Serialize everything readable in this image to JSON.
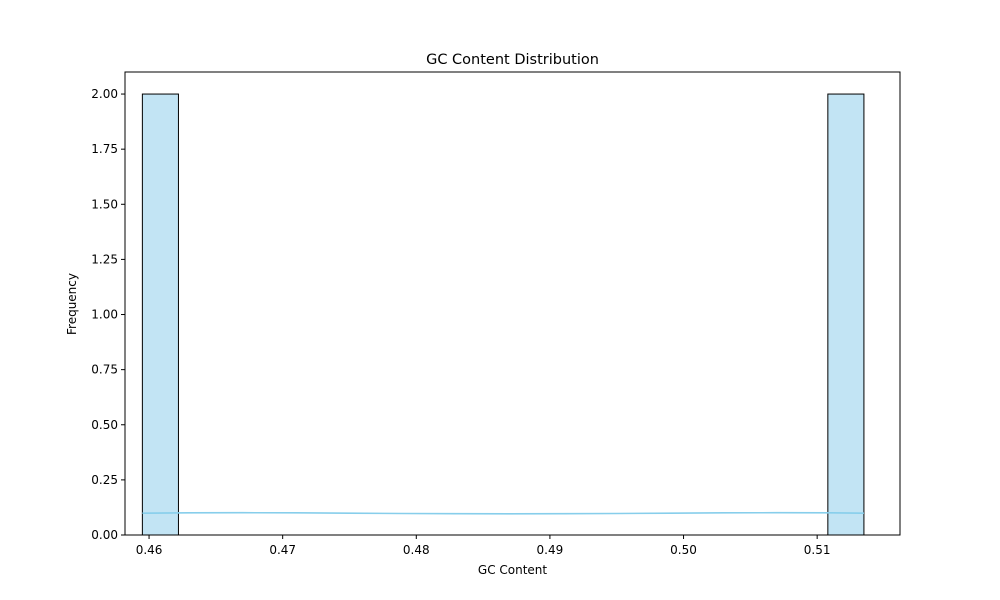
{
  "chart_data": {
    "type": "bar",
    "title": "GC Content Distribution",
    "xlabel": "GC Content",
    "ylabel": "Frequency",
    "xlim": [
      0.4582,
      0.5162
    ],
    "ylim": [
      0.0,
      2.1
    ],
    "xticks": [
      "0.46",
      "0.47",
      "0.48",
      "0.49",
      "0.50",
      "0.51"
    ],
    "xtick_values": [
      0.46,
      0.47,
      0.48,
      0.49,
      0.5,
      0.51
    ],
    "yticks": [
      "0.00",
      "0.25",
      "0.50",
      "0.75",
      "1.00",
      "1.25",
      "1.50",
      "1.75",
      "2.00"
    ],
    "ytick_values": [
      0.0,
      0.25,
      0.5,
      0.75,
      1.0,
      1.25,
      1.5,
      1.75,
      2.0
    ],
    "bins": [
      {
        "x0": 0.4595,
        "x1": 0.4622,
        "count": 2
      },
      {
        "x0": 0.5108,
        "x1": 0.5135,
        "count": 2
      }
    ],
    "kde": {
      "x": [
        0.4595,
        0.463,
        0.467,
        0.471,
        0.475,
        0.479,
        0.483,
        0.487,
        0.491,
        0.495,
        0.499,
        0.503,
        0.507,
        0.511,
        0.5135
      ],
      "y": [
        0.099,
        0.1005,
        0.101,
        0.1005,
        0.099,
        0.0975,
        0.0965,
        0.096,
        0.0965,
        0.0975,
        0.099,
        0.1005,
        0.101,
        0.1005,
        0.099
      ]
    },
    "grid": false,
    "colors": {
      "bar_fill": "#c2e4f4",
      "bar_edge": "#000000",
      "kde_line": "#87ceeb",
      "axes": "#000000"
    }
  }
}
